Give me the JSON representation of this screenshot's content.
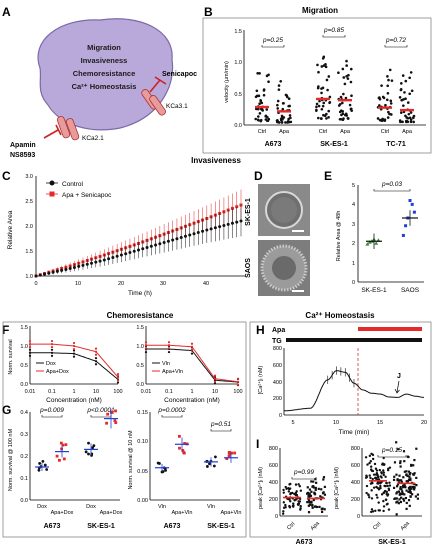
{
  "colors": {
    "red": "#e32b2b",
    "black": "#111111",
    "blue": "#1f3fd9",
    "green": "#3a8a3a",
    "cell": "#b9a9da",
    "channel": "#e99a9a"
  },
  "panels": {
    "A": {
      "label": "A",
      "cell_lines": [
        "Migration",
        "Invasiveness",
        "Chemoresistance",
        "Ca²⁺ Homeostasis"
      ],
      "senicapoc": "Senicapoc",
      "kca31": "KCa3.1",
      "kca21": "KCa2.1",
      "apamin": "Apamin",
      "ns8593": "NS8593"
    },
    "B": {
      "label": "B",
      "title": "Migration",
      "ylabel": "velocity (µm/min)",
      "yticks": [
        "0.0",
        "0.5",
        "1.0",
        "1.5"
      ],
      "groups": [
        {
          "name": "A673",
          "p": "p=0.25"
        },
        {
          "name": "SK-ES-1",
          "p": "p=0.85"
        },
        {
          "name": "TC-71",
          "p": "p=0.72"
        }
      ],
      "xcats": [
        "Ctrl",
        "Apa"
      ]
    },
    "C": {
      "label": "C",
      "title": "Invasiveness",
      "ylabel": "Relative Area",
      "xlabel": "Time (h)",
      "yticks": [
        "1.0",
        "1.5",
        "2.0",
        "2.5",
        "3.0"
      ],
      "xticks": [
        "0",
        "10",
        "20",
        "30",
        "40"
      ],
      "legend": [
        "Control",
        "Apa + Senicapoc"
      ]
    },
    "D": {
      "label": "D",
      "row_labels": [
        "SK-ES-1",
        "SAOS"
      ]
    },
    "E": {
      "label": "E",
      "p": "p=0.03",
      "ylabel": "Relative Area @ 48h",
      "yticks": [
        "0",
        "1",
        "2",
        "3",
        "4",
        "5"
      ],
      "xcats": [
        "SK-ES-1",
        "SAOS"
      ]
    },
    "F": {
      "label": "F",
      "title": "Chemoresistance",
      "ylabel": "Norm. survival",
      "xlabel": "Concentration (nM)",
      "left_xticks": [
        "0.01",
        "0.1",
        "1",
        "10",
        "100"
      ],
      "right_xticks": [
        "0.01",
        "0.1",
        "1",
        "10",
        "100"
      ],
      "yticks": [
        "0.0",
        "0.5",
        "1.0",
        "1.5"
      ],
      "left_legend": [
        "Dox",
        "Apa+Dox"
      ],
      "right_legend": [
        "Vln",
        "Apa+Vln"
      ]
    },
    "G": {
      "label": "G",
      "ylabel": "Norm. survival @ 100 nM",
      "ylabel_right": "Norm. survival @ 10 nM",
      "left_yticks": [
        "0.0",
        "0.1",
        "0.2",
        "0.3",
        "0.4"
      ],
      "right_yticks": [
        "0.00",
        "0.05",
        "0.10",
        "0.15"
      ],
      "left_p": [
        "p=0.009",
        "p<0.0001"
      ],
      "right_p": [
        "p=0.0002",
        "p=0.51"
      ],
      "left_xcats": [
        "Dox",
        "Apa+Dox",
        "Dox",
        "Apa+Dox"
      ],
      "right_xcats": [
        "Vln",
        "Apa+Vln",
        "Vln",
        "Apa+Vln"
      ],
      "groups": [
        "A673",
        "SK-ES-1"
      ]
    },
    "H": {
      "label": "H",
      "title": "Ca²⁺ Homeostasis",
      "apa": "Apa",
      "tg": "TG",
      "ylabel": "[Ca²⁺]ᵢ (nM)",
      "xlabel": "Time (min)",
      "yticks": [
        "0",
        "200",
        "400",
        "600",
        "800"
      ],
      "xticks": [
        "5",
        "10",
        "15",
        "20"
      ],
      "marker": "J"
    },
    "I": {
      "label": "I",
      "ylabel": "peak [Ca²⁺]ᵢ (nM)",
      "left_yticks": [
        "0",
        "200",
        "400",
        "600",
        "800"
      ],
      "right_yticks": [
        "0",
        "200",
        "400",
        "600",
        "800"
      ],
      "left_p": "p=0.99",
      "right_p": "p=0.15",
      "xcats": [
        "Ctrl",
        "Apa"
      ],
      "groups": [
        "A673",
        "SK-ES-1"
      ]
    }
  },
  "chart_data": [
    {
      "panel": "B",
      "type": "scatter",
      "title": "Migration",
      "ylabel": "velocity (µm/min)",
      "ylim": [
        0,
        1.5
      ],
      "series": [
        {
          "name": "A673 Ctrl",
          "mean": 0.29,
          "min": 0.06,
          "max": 0.9
        },
        {
          "name": "A673 Apa",
          "mean": 0.22,
          "min": 0.04,
          "max": 0.85
        },
        {
          "name": "SK-ES-1 Ctrl",
          "mean": 0.42,
          "min": 0.1,
          "max": 1.15
        },
        {
          "name": "SK-ES-1 Apa",
          "mean": 0.4,
          "min": 0.08,
          "max": 1.1
        },
        {
          "name": "TC-71 Ctrl",
          "mean": 0.28,
          "min": 0.07,
          "max": 0.95
        },
        {
          "name": "TC-71 Apa",
          "mean": 0.24,
          "min": 0.05,
          "max": 0.9
        }
      ]
    },
    {
      "panel": "C",
      "type": "line",
      "title": "Invasiveness",
      "xlabel": "Time (h)",
      "ylabel": "Relative Area",
      "xlim": [
        0,
        48
      ],
      "ylim": [
        1.0,
        3.0
      ],
      "series": [
        {
          "name": "Control",
          "x": [
            0,
            8,
            16,
            24,
            32,
            40,
            48
          ],
          "y": [
            1.0,
            1.15,
            1.32,
            1.52,
            1.72,
            1.92,
            2.1
          ]
        },
        {
          "name": "Apa + Senicapoc",
          "x": [
            0,
            8,
            16,
            24,
            32,
            40,
            48
          ],
          "y": [
            1.0,
            1.2,
            1.42,
            1.65,
            1.9,
            2.15,
            2.42
          ]
        }
      ]
    },
    {
      "panel": "E",
      "type": "scatter",
      "ylabel": "Relative Area @ 48h",
      "ylim": [
        0,
        5
      ],
      "categories": [
        "SK-ES-1",
        "SAOS"
      ],
      "means": [
        2.1,
        3.3
      ]
    },
    {
      "panel": "F-left",
      "type": "line",
      "xlabel": "Concentration (nM)",
      "ylabel": "Norm. survival",
      "ylim": [
        0,
        1.5
      ],
      "xscale": "log",
      "series": [
        {
          "name": "Dox",
          "x": [
            0.01,
            0.1,
            1,
            10,
            100
          ],
          "y": [
            0.82,
            0.82,
            0.8,
            0.6,
            0.12
          ]
        },
        {
          "name": "Apa+Dox",
          "x": [
            0.01,
            0.1,
            1,
            10,
            100
          ],
          "y": [
            1.05,
            1.05,
            1.0,
            0.85,
            0.18
          ]
        }
      ]
    },
    {
      "panel": "F-right",
      "type": "line",
      "xlabel": "Concentration (nM)",
      "ylabel": "Norm. survival",
      "ylim": [
        0,
        1.5
      ],
      "xscale": "log",
      "series": [
        {
          "name": "Vln",
          "x": [
            0.01,
            0.1,
            1,
            10,
            100
          ],
          "y": [
            0.92,
            0.92,
            0.88,
            0.1,
            0.05
          ]
        },
        {
          "name": "Apa+Vln",
          "x": [
            0.01,
            0.1,
            1,
            10,
            100
          ],
          "y": [
            1.02,
            1.02,
            0.98,
            0.14,
            0.06
          ]
        }
      ]
    },
    {
      "panel": "G-left",
      "type": "scatter",
      "ylabel": "Norm. survival @ 100 nM",
      "ylim": [
        0,
        0.4
      ],
      "categories": [
        "A673 Dox",
        "A673 Apa+Dox",
        "SK-ES-1 Dox",
        "SK-ES-1 Apa+Dox"
      ],
      "means": [
        0.15,
        0.22,
        0.23,
        0.37
      ]
    },
    {
      "panel": "G-right",
      "type": "scatter",
      "ylabel": "Norm. survival @ 10 nM",
      "ylim": [
        0,
        0.15
      ],
      "categories": [
        "A673 Vln",
        "A673 Apa+Vln",
        "SK-ES-1 Vln",
        "SK-ES-1 Apa+Vln"
      ],
      "means": [
        0.055,
        0.095,
        0.065,
        0.072
      ]
    },
    {
      "panel": "H",
      "type": "line",
      "xlabel": "Time (min)",
      "ylabel": "[Ca²⁺]ᵢ (nM)",
      "xlim": [
        4,
        20
      ],
      "ylim": [
        0,
        800
      ],
      "series": [
        {
          "name": "",
          "x": [
            4,
            7,
            9,
            10,
            11,
            12,
            13,
            14,
            15,
            16,
            17,
            18,
            19,
            20
          ],
          "y": [
            50,
            80,
            420,
            530,
            510,
            380,
            300,
            260,
            250,
            215,
            210,
            250,
            225,
            210
          ]
        }
      ]
    },
    {
      "panel": "I-left",
      "type": "scatter",
      "ylabel": "peak [Ca²⁺]ᵢ (nM)",
      "ylim": [
        0,
        800
      ],
      "categories": [
        "Ctrl",
        "Apa"
      ],
      "means": [
        220,
        210
      ]
    },
    {
      "panel": "I-right",
      "type": "scatter",
      "ylabel": "peak [Ca²⁺]ᵢ (nM)",
      "ylim": [
        0,
        800
      ],
      "categories": [
        "Ctrl",
        "Apa"
      ],
      "means": [
        420,
        390
      ]
    }
  ]
}
